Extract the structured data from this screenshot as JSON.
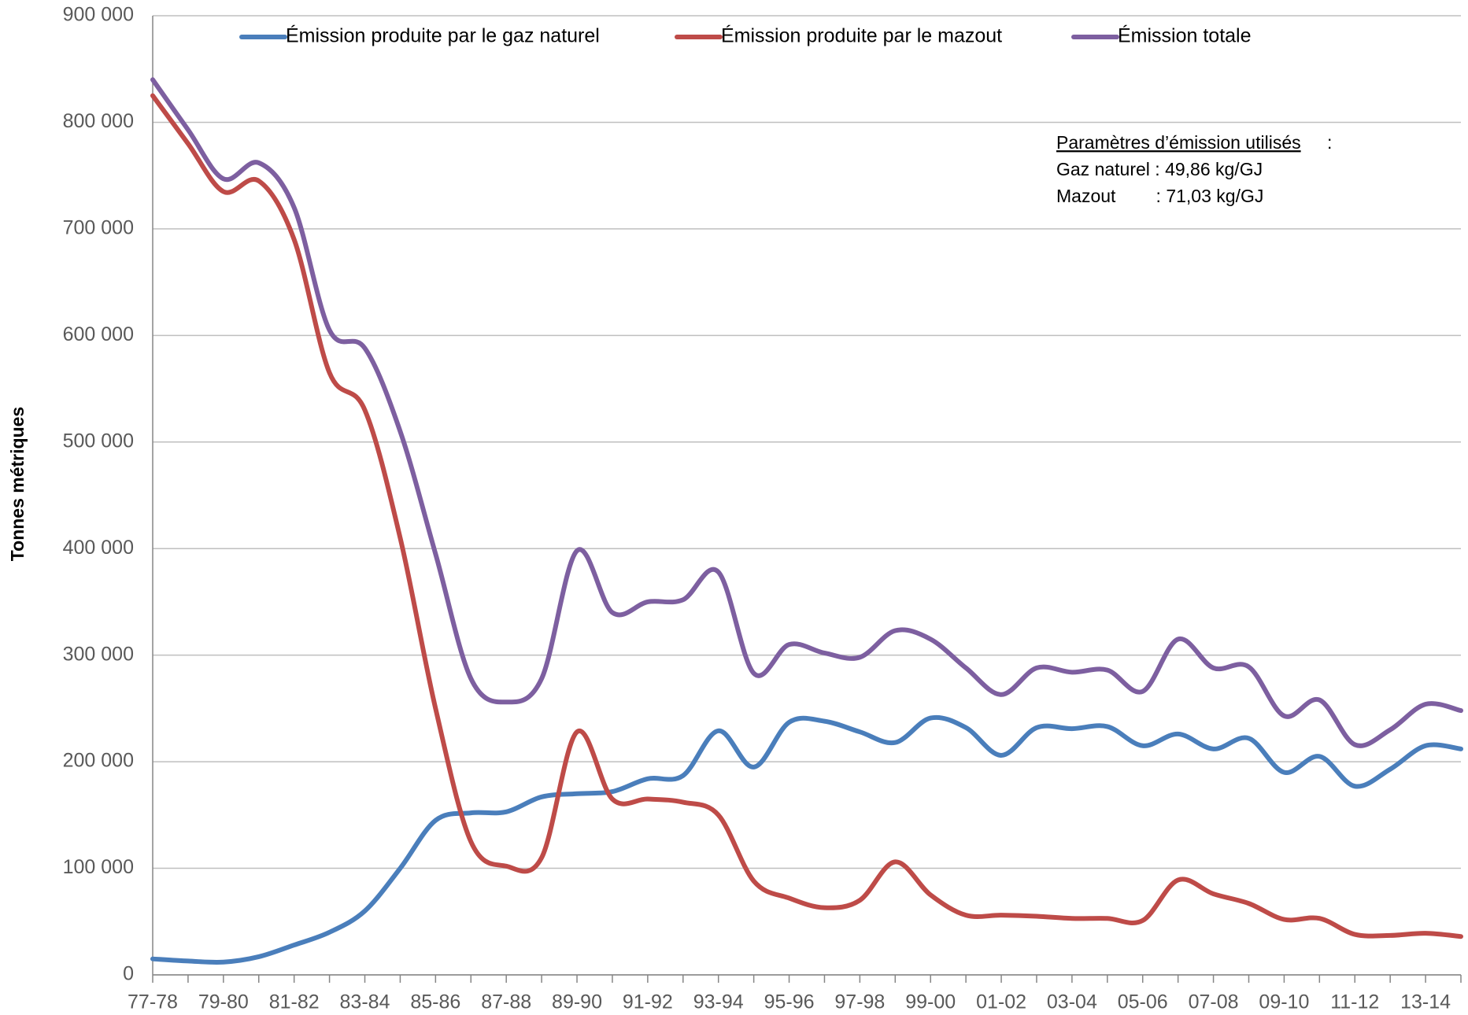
{
  "chart_data": {
    "type": "line",
    "y_label": "Tonnes métriques",
    "categories": [
      "77-78",
      null,
      "79-80",
      null,
      "81-82",
      null,
      "83-84",
      null,
      "85-86",
      null,
      "87-88",
      null,
      "89-90",
      null,
      "91-92",
      null,
      "93-94",
      null,
      "95-96",
      null,
      "97-98",
      null,
      "99-00",
      null,
      "01-02",
      null,
      "03-04",
      null,
      "05-06",
      null,
      "07-08",
      null,
      "09-10",
      null,
      "11-12",
      null,
      "13-14",
      null
    ],
    "series": [
      {
        "name": "Émission produite par le gaz naturel",
        "color": "#4a7ebb",
        "values": [
          15000,
          13000,
          12000,
          17000,
          28000,
          40000,
          60000,
          100000,
          145000,
          152000,
          153000,
          167000,
          170000,
          172000,
          184000,
          187000,
          229000,
          195000,
          237000,
          238000,
          228000,
          218000,
          241000,
          232000,
          206000,
          232000,
          231000,
          233000,
          215000,
          226000,
          212000,
          222000,
          190000,
          205000,
          177000,
          193000,
          215000,
          212000
        ]
      },
      {
        "name": "Émission produite par le mazout",
        "color": "#be4b48",
        "values": [
          825000,
          780000,
          735000,
          745000,
          690000,
          565000,
          530000,
          410000,
          250000,
          125000,
          102000,
          110000,
          228000,
          165000,
          165000,
          162000,
          150000,
          88000,
          72000,
          63000,
          70000,
          106000,
          75000,
          56000,
          56000,
          55000,
          53000,
          53000,
          51000,
          89000,
          76000,
          67000,
          52000,
          53000,
          38000,
          37000,
          39000,
          36000
        ]
      },
      {
        "name": "Émission totale",
        "color": "#7d5fa0",
        "values": [
          840000,
          793000,
          747000,
          762000,
          720000,
          605000,
          588000,
          510000,
          395000,
          278000,
          256000,
          278000,
          398000,
          340000,
          350000,
          352000,
          378000,
          283000,
          310000,
          302000,
          298000,
          323000,
          315000,
          288000,
          263000,
          288000,
          284000,
          286000,
          266000,
          315000,
          288000,
          289000,
          243000,
          258000,
          216000,
          230000,
          254000,
          248000
        ]
      }
    ],
    "ylim": [
      0,
      900000
    ],
    "yticks": [
      0,
      {
        "value": 100000,
        "label": "100 000"
      },
      {
        "value": 200000,
        "label": "200 000"
      },
      {
        "value": 300000,
        "label": "300 000"
      },
      {
        "value": 400000,
        "label": "400 000"
      },
      {
        "value": 500000,
        "label": "500 000"
      },
      {
        "value": 600000,
        "label": "600 000"
      },
      {
        "value": 700000,
        "label": "700 000"
      },
      {
        "value": 800000,
        "label": "800 000"
      },
      {
        "value": 900000,
        "label": "900 000"
      }
    ],
    "grid": true,
    "legend": "top",
    "annotation": {
      "title": "Paramètres d’émission utilisés",
      "title_suffix": " :",
      "lines": [
        "Gaz naturel : 49,86 kg/GJ",
        "Mazout        : 71,03 kg/GJ"
      ]
    }
  }
}
